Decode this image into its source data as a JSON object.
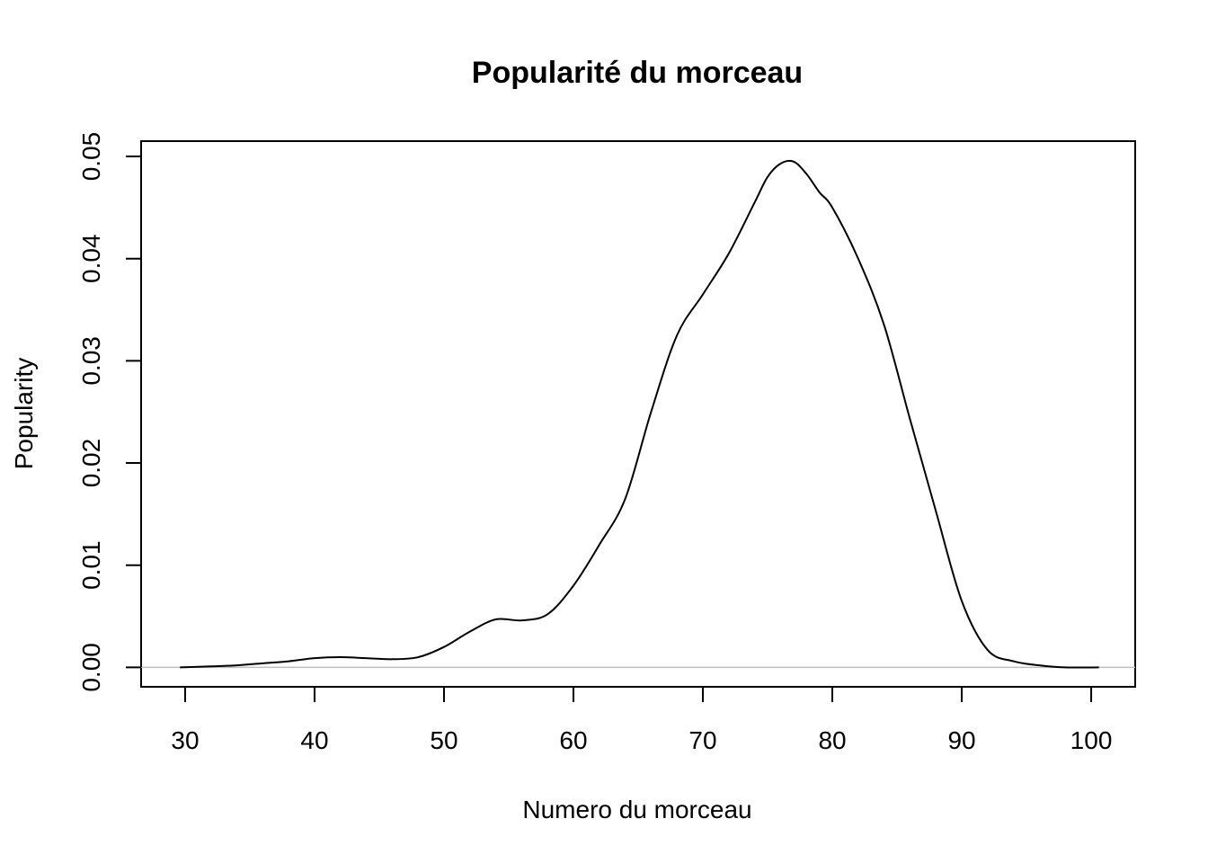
{
  "chart_data": {
    "type": "line",
    "title": "Popularité du morceau",
    "xlabel": "Numero du morceau",
    "ylabel": "Popularity",
    "xlim": [
      26.6,
      103.4
    ],
    "ylim": [
      -0.0019,
      0.0515
    ],
    "x_ticks": [
      30,
      40,
      50,
      60,
      70,
      80,
      90,
      100
    ],
    "x_tick_labels": [
      "30",
      "40",
      "50",
      "60",
      "70",
      "80",
      "90",
      "100"
    ],
    "y_ticks": [
      0.0,
      0.01,
      0.02,
      0.03,
      0.04,
      0.05
    ],
    "y_tick_labels": [
      "0.00",
      "0.01",
      "0.02",
      "0.03",
      "0.04",
      "0.05"
    ],
    "grid": false,
    "baseline_color": "#bebebe",
    "line_color": "#000000",
    "series": [
      {
        "x": [
          29.6,
          32,
          34,
          36,
          38,
          40,
          42,
          44,
          46,
          48,
          50,
          52,
          54,
          56,
          58,
          60,
          62,
          64,
          66,
          68,
          70,
          72,
          74,
          75,
          76,
          77,
          78,
          79,
          80,
          82,
          84,
          86,
          88,
          90,
          92,
          94,
          96,
          98,
          100.6
        ],
        "y": [
          0.0,
          0.0001,
          0.0002,
          0.0004,
          0.0006,
          0.0009,
          0.001,
          0.0009,
          0.0008,
          0.001,
          0.002,
          0.0035,
          0.0047,
          0.0046,
          0.0052,
          0.008,
          0.012,
          0.0165,
          0.025,
          0.0325,
          0.0365,
          0.0405,
          0.0455,
          0.048,
          0.0493,
          0.0495,
          0.0483,
          0.0465,
          0.045,
          0.04,
          0.0335,
          0.0243,
          0.0153,
          0.0065,
          0.0017,
          0.0006,
          0.0002,
          0.0,
          0.0
        ]
      }
    ]
  }
}
